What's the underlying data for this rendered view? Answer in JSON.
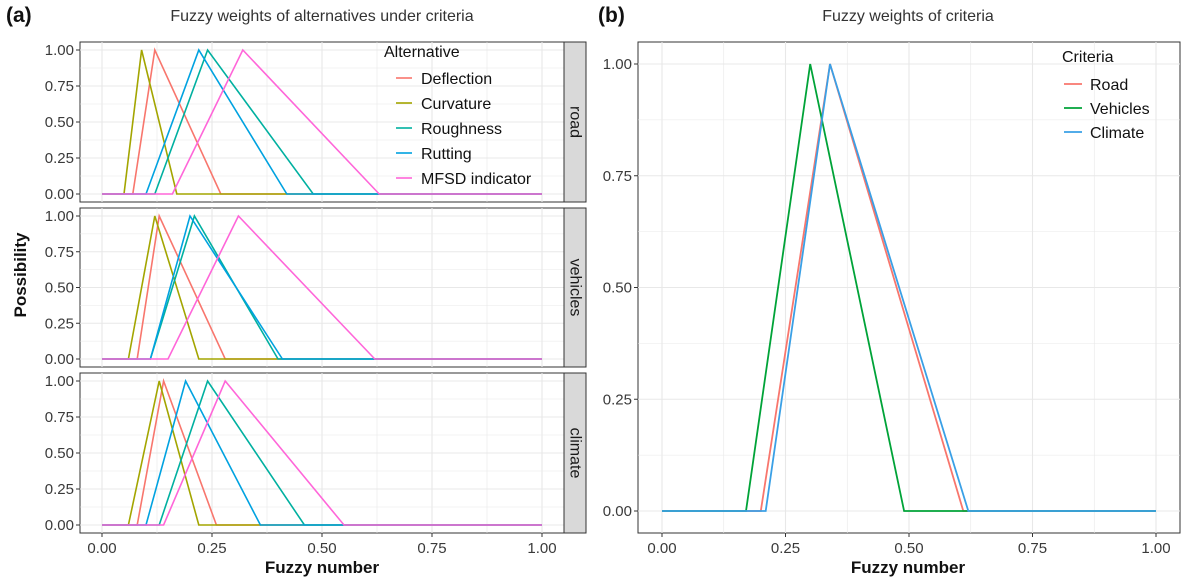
{
  "panel_a": {
    "tag": "(a)",
    "title": "Fuzzy weights of alternatives under criteria",
    "ylabel": "Possibility",
    "xlabel": "Fuzzy number",
    "x_ticks": [
      "0.00",
      "0.25",
      "0.50",
      "0.75",
      "1.00"
    ],
    "y_ticks": [
      "0.00",
      "0.25",
      "0.50",
      "0.75",
      "1.00"
    ],
    "legend_title": "Alternative",
    "legend": [
      {
        "name": "Deflection",
        "color": "#F8766D"
      },
      {
        "name": "Curvature",
        "color": "#A3A500"
      },
      {
        "name": "Roughness",
        "color": "#00B0A0"
      },
      {
        "name": "Rutting",
        "color": "#00A2E0"
      },
      {
        "name": "MFSD indicator",
        "color": "#FF66D9"
      }
    ]
  },
  "panel_b": {
    "tag": "(b)",
    "title": "Fuzzy weights of criteria",
    "xlabel": "Fuzzy number",
    "x_ticks": [
      "0.00",
      "0.25",
      "0.50",
      "0.75",
      "1.00"
    ],
    "y_ticks": [
      "0.00",
      "0.25",
      "0.50",
      "0.75",
      "1.00"
    ],
    "legend_title": "Criteria",
    "legend": [
      {
        "name": "Road",
        "color": "#F8766D"
      },
      {
        "name": "Vehicles",
        "color": "#00A338"
      },
      {
        "name": "Climate",
        "color": "#3AA0E6"
      }
    ]
  },
  "chart_data": [
    {
      "type": "line",
      "title": "Fuzzy weights of alternatives under criteria",
      "xlabel": "Fuzzy number",
      "ylabel": "Possibility",
      "xlim": [
        0,
        1
      ],
      "ylim": [
        0,
        1
      ],
      "grid": true,
      "legend_position": "top-right",
      "facets": [
        {
          "strip": "road",
          "series": [
            {
              "name": "Deflection",
              "color": "#F8766D",
              "tfn": [
                0.07,
                0.12,
                0.27
              ]
            },
            {
              "name": "Curvature",
              "color": "#A3A500",
              "tfn": [
                0.05,
                0.09,
                0.17
              ]
            },
            {
              "name": "Roughness",
              "color": "#00B0A0",
              "tfn": [
                0.12,
                0.24,
                0.48
              ]
            },
            {
              "name": "Rutting",
              "color": "#00A2E0",
              "tfn": [
                0.1,
                0.22,
                0.42
              ]
            },
            {
              "name": "MFSD indicator",
              "color": "#FF66D9",
              "tfn": [
                0.16,
                0.32,
                0.63
              ]
            }
          ]
        },
        {
          "strip": "vehicles",
          "series": [
            {
              "name": "Deflection",
              "color": "#F8766D",
              "tfn": [
                0.08,
                0.13,
                0.28
              ]
            },
            {
              "name": "Curvature",
              "color": "#A3A500",
              "tfn": [
                0.06,
                0.12,
                0.22
              ]
            },
            {
              "name": "Roughness",
              "color": "#00B0A0",
              "tfn": [
                0.11,
                0.21,
                0.4
              ]
            },
            {
              "name": "Rutting",
              "color": "#00A2E0",
              "tfn": [
                0.11,
                0.2,
                0.41
              ]
            },
            {
              "name": "MFSD indicator",
              "color": "#FF66D9",
              "tfn": [
                0.15,
                0.31,
                0.62
              ]
            }
          ]
        },
        {
          "strip": "climate",
          "series": [
            {
              "name": "Deflection",
              "color": "#F8766D",
              "tfn": [
                0.08,
                0.14,
                0.26
              ]
            },
            {
              "name": "Curvature",
              "color": "#A3A500",
              "tfn": [
                0.06,
                0.13,
                0.22
              ]
            },
            {
              "name": "Roughness",
              "color": "#00B0A0",
              "tfn": [
                0.13,
                0.24,
                0.46
              ]
            },
            {
              "name": "Rutting",
              "color": "#00A2E0",
              "tfn": [
                0.1,
                0.19,
                0.36
              ]
            },
            {
              "name": "MFSD indicator",
              "color": "#FF66D9",
              "tfn": [
                0.14,
                0.28,
                0.55
              ]
            }
          ]
        }
      ]
    },
    {
      "type": "line",
      "title": "Fuzzy weights of criteria",
      "xlabel": "Fuzzy number",
      "xlim": [
        0,
        1
      ],
      "ylim": [
        0,
        1
      ],
      "grid": true,
      "legend_position": "top-right",
      "series": [
        {
          "name": "Road",
          "color": "#F8766D",
          "tfn": [
            0.2,
            0.34,
            0.61
          ]
        },
        {
          "name": "Vehicles",
          "color": "#00A338",
          "tfn": [
            0.17,
            0.3,
            0.49
          ]
        },
        {
          "name": "Climate",
          "color": "#3AA0E6",
          "tfn": [
            0.21,
            0.34,
            0.62
          ]
        }
      ]
    }
  ]
}
